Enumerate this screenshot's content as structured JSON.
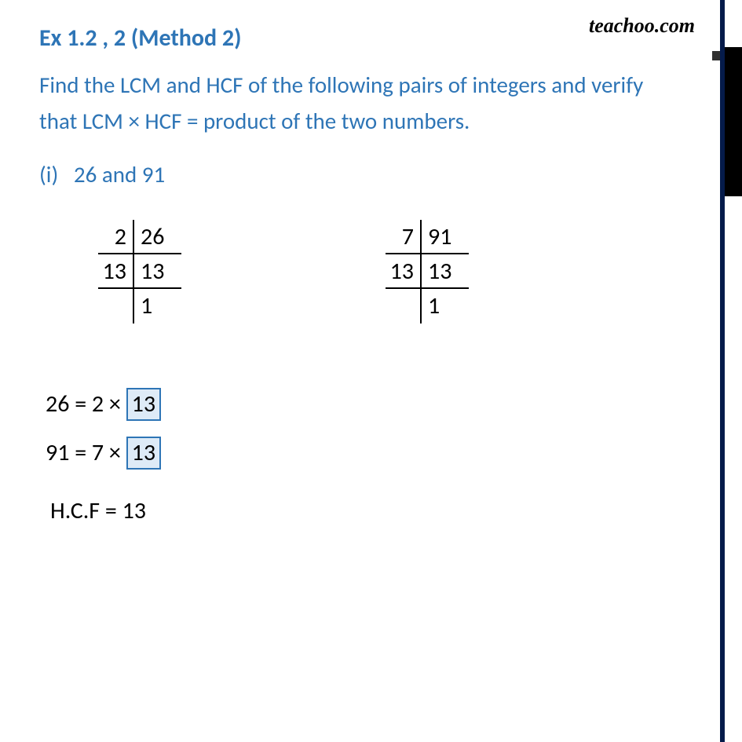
{
  "brand": "teachoo.com",
  "title": "Ex 1.2 , 2 (Method 2)",
  "question": "Find the LCM and HCF of the following pairs of integers and verify that LCM × HCF = product of the two numbers.",
  "subpart_label": "(i)",
  "subpart_numbers": "26 and 91",
  "factor_tables": {
    "left": {
      "rows": [
        {
          "divisor": "2",
          "value": "26"
        },
        {
          "divisor": "13",
          "value": "13"
        },
        {
          "divisor": "",
          "value": "1"
        }
      ]
    },
    "right": {
      "rows": [
        {
          "divisor": "7",
          "value": "91"
        },
        {
          "divisor": "13",
          "value": "13"
        },
        {
          "divisor": "",
          "value": "1"
        }
      ]
    }
  },
  "factorizations": {
    "row1_left": "26 = 2 ×",
    "row1_box": "13",
    "row2_left": "91 = 7 ×",
    "row2_box": "13"
  },
  "hcf_line": "H.C.F = 13",
  "colors": {
    "accent_blue": "#2e75b6",
    "box_fill": "#deebf7",
    "text_black": "#000000",
    "page_border": "#051b4a"
  }
}
